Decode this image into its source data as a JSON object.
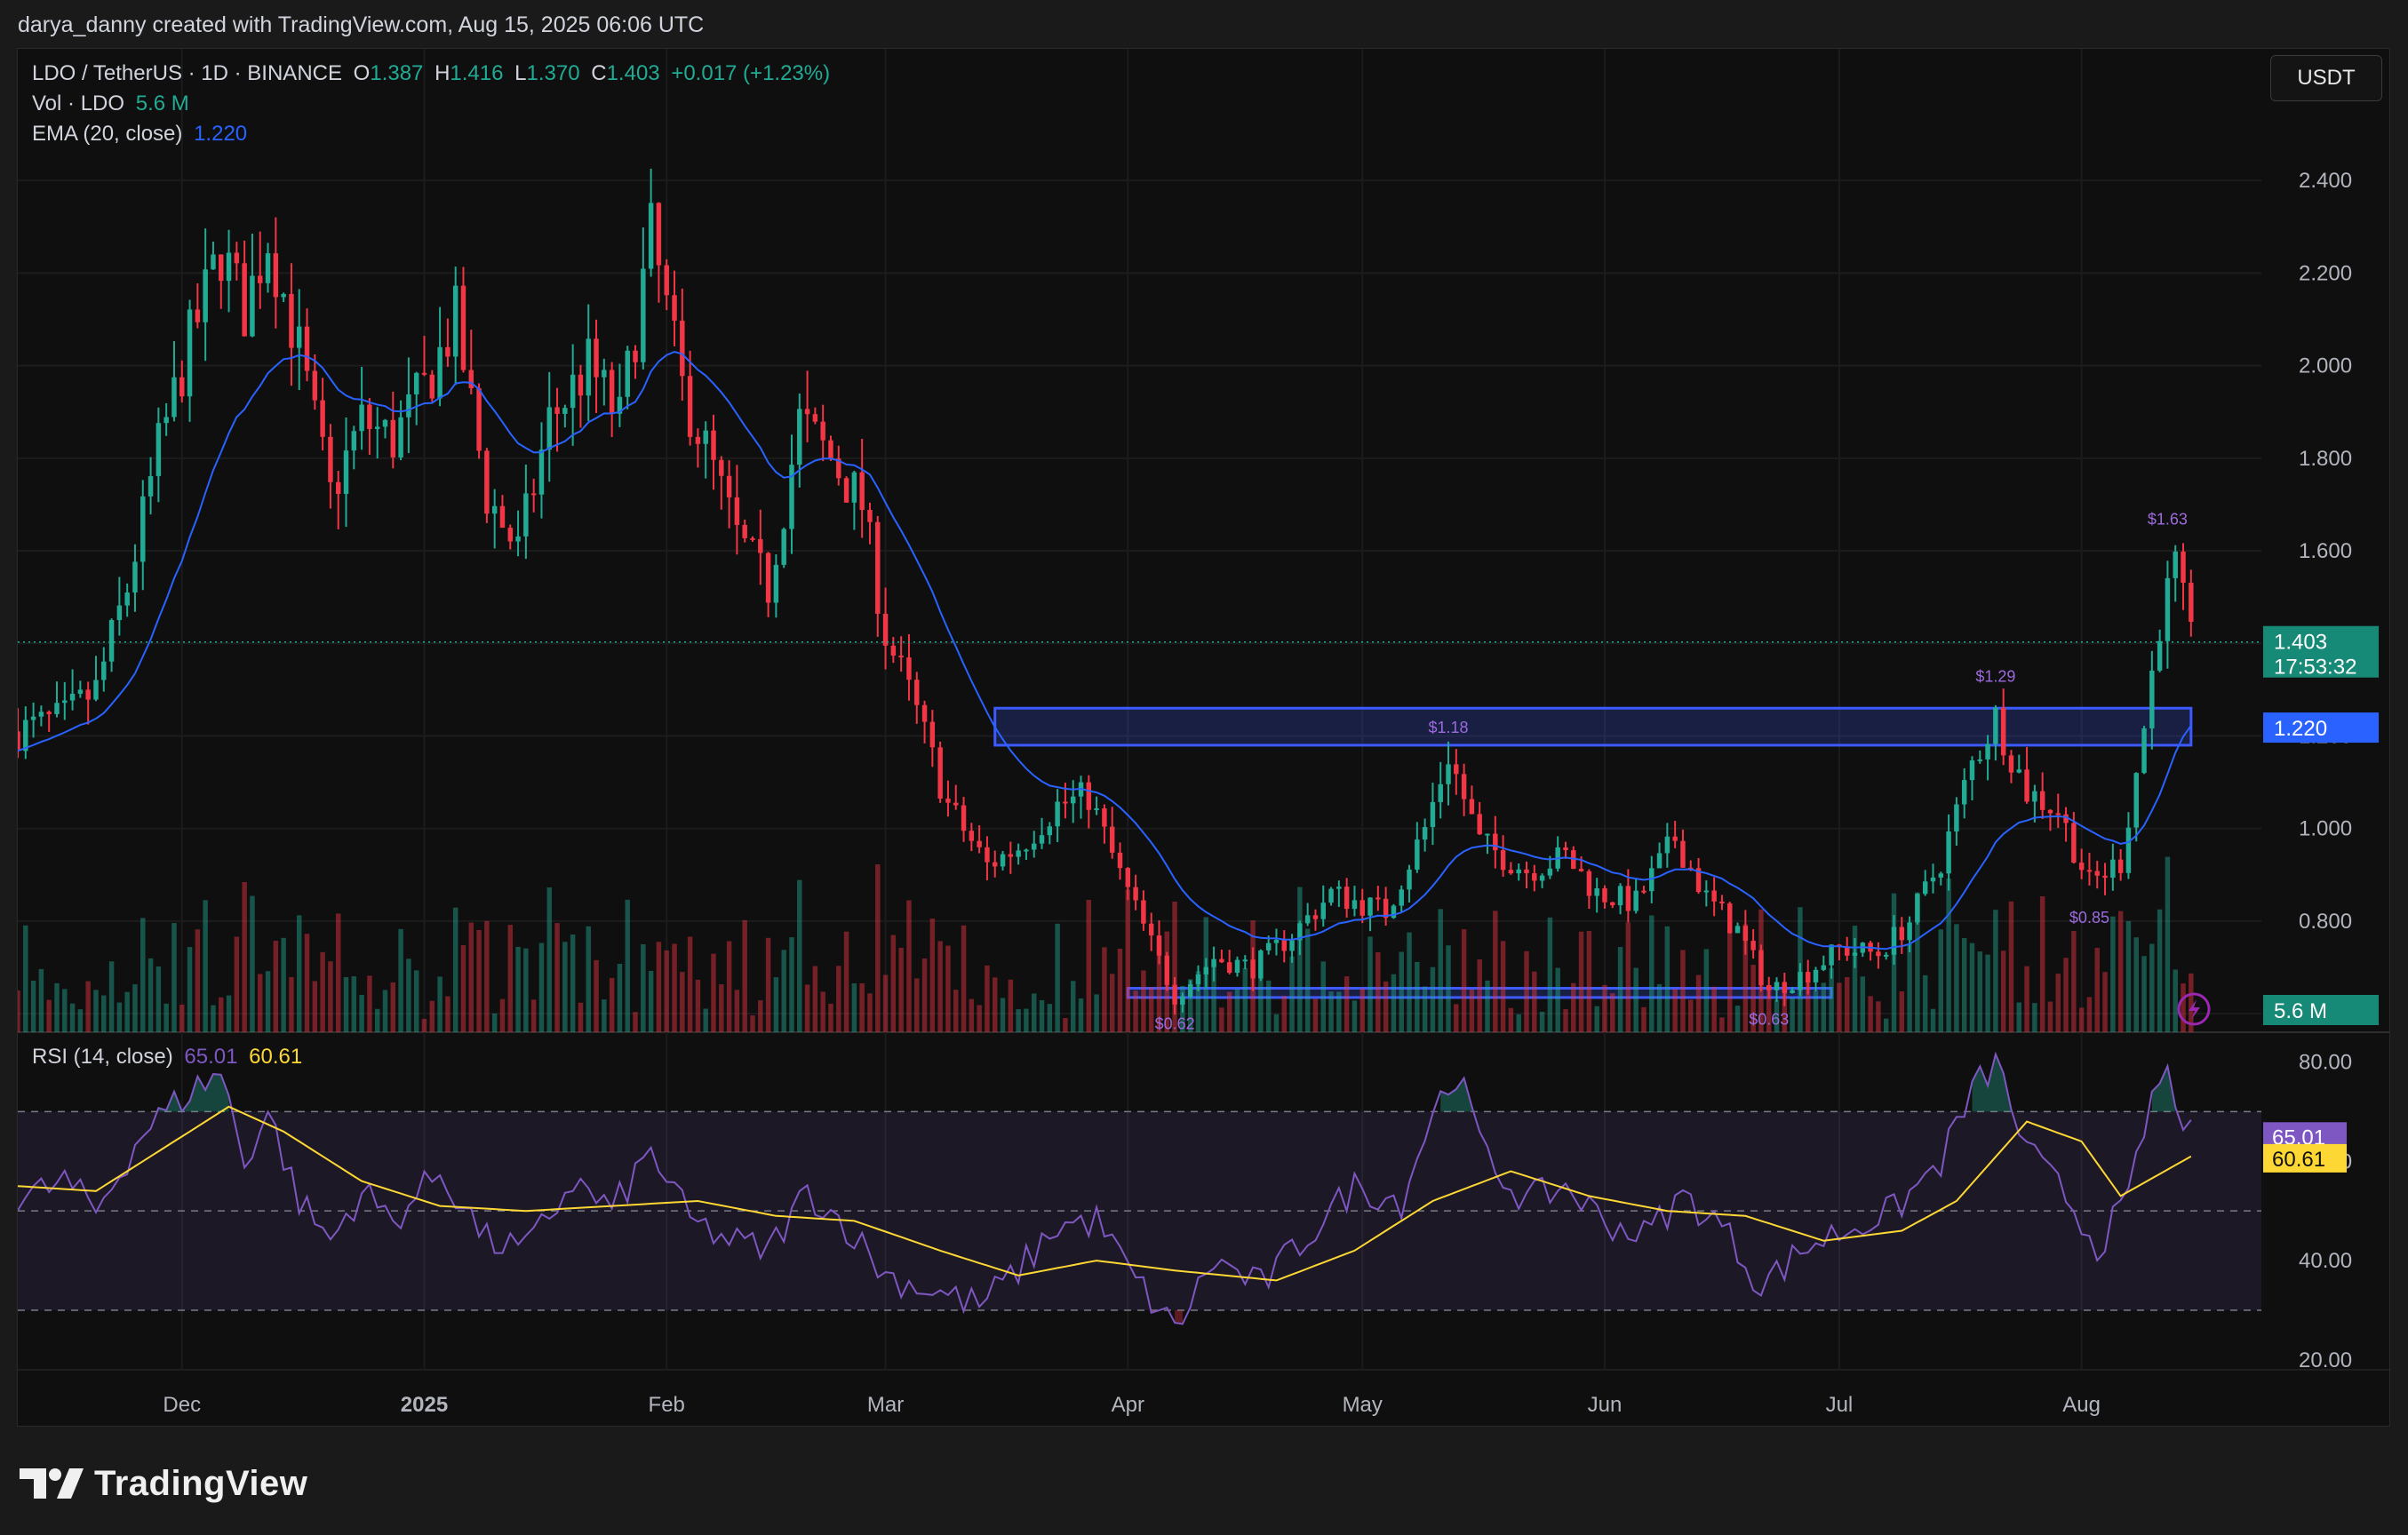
{
  "header": {
    "credit": "darya_danny created with TradingView.com, Aug 15, 2025 06:06 UTC"
  },
  "legend": {
    "symbol": "LDO / TetherUS · 1D · BINANCE",
    "o_label": "O",
    "o_value": "1.387",
    "h_label": "H",
    "h_value": "1.416",
    "l_label": "L",
    "l_value": "1.370",
    "c_label": "C",
    "c_value": "1.403",
    "change": "+0.017 (+1.23%)",
    "vol_label": "Vol · LDO",
    "vol_value": "5.6 M",
    "ema_label": "EMA (20, close)",
    "ema_value": "1.220",
    "rsi_label": "RSI (14, close)",
    "rsi_value": "65.01",
    "rsi_ma_value": "60.61"
  },
  "toolbar": {
    "currency": "USDT"
  },
  "branding": {
    "logo_text": "TradingView"
  },
  "colors": {
    "up": "#22ab94",
    "down": "#f23645",
    "ema": "#2962ff",
    "rsi": "#7e57c2",
    "rsi_ma": "#fdd835",
    "zone": "#3d5afe"
  },
  "chart_data": {
    "type": "candlestick",
    "symbol": "LDO/USDT",
    "interval": "1D",
    "x_ticks": [
      "Dec",
      "2025",
      "Feb",
      "Mar",
      "Apr",
      "May",
      "Jun",
      "Jul",
      "Aug"
    ],
    "price_axis": {
      "ticks": [
        "2.400",
        "2.200",
        "2.000",
        "1.800",
        "1.600",
        "1.400",
        "1.200",
        "1.000",
        "0.800",
        "0.600"
      ],
      "ylim": [
        0.56,
        2.55
      ]
    },
    "price_path": [
      [
        "2024-11-10",
        1.21
      ],
      [
        "2024-11-16",
        1.24
      ],
      [
        "2024-11-20",
        1.3
      ],
      [
        "2024-11-24",
        1.52
      ],
      [
        "2024-11-28",
        1.82
      ],
      [
        "2024-12-02",
        2.05
      ],
      [
        "2024-12-06",
        2.25
      ],
      [
        "2024-12-09",
        2.12
      ],
      [
        "2024-12-12",
        2.28
      ],
      [
        "2024-12-16",
        2.03
      ],
      [
        "2024-12-20",
        1.72
      ],
      [
        "2024-12-24",
        1.88
      ],
      [
        "2024-12-28",
        1.84
      ],
      [
        "2025-01-01",
        1.95
      ],
      [
        "2025-01-05",
        2.1
      ],
      [
        "2025-01-09",
        1.72
      ],
      [
        "2025-01-13",
        1.6
      ],
      [
        "2025-01-17",
        1.88
      ],
      [
        "2025-01-22",
        2.0
      ],
      [
        "2025-01-26",
        1.88
      ],
      [
        "2025-01-30",
        2.28
      ],
      [
        "2025-02-03",
        1.95
      ],
      [
        "2025-02-06",
        1.82
      ],
      [
        "2025-02-10",
        1.63
      ],
      [
        "2025-02-14",
        1.52
      ],
      [
        "2025-02-18",
        1.88
      ],
      [
        "2025-02-22",
        1.8
      ],
      [
        "2025-02-26",
        1.7
      ],
      [
        "2025-03-01",
        1.42
      ],
      [
        "2025-03-05",
        1.25
      ],
      [
        "2025-03-09",
        1.05
      ],
      [
        "2025-03-14",
        0.92
      ],
      [
        "2025-03-18",
        0.96
      ],
      [
        "2025-03-23",
        1.05
      ],
      [
        "2025-03-27",
        1.07
      ],
      [
        "2025-03-31",
        0.9
      ],
      [
        "2025-04-04",
        0.75
      ],
      [
        "2025-04-07",
        0.64
      ],
      [
        "2025-04-12",
        0.72
      ],
      [
        "2025-04-17",
        0.7
      ],
      [
        "2025-04-22",
        0.77
      ],
      [
        "2025-04-27",
        0.86
      ],
      [
        "2025-05-04",
        0.82
      ],
      [
        "2025-05-09",
        1.0
      ],
      [
        "2025-05-12",
        1.16
      ],
      [
        "2025-05-16",
        0.97
      ],
      [
        "2025-05-22",
        0.91
      ],
      [
        "2025-05-27",
        0.94
      ],
      [
        "2025-05-31",
        0.86
      ],
      [
        "2025-06-05",
        0.84
      ],
      [
        "2025-06-10",
        0.98
      ],
      [
        "2025-06-14",
        0.85
      ],
      [
        "2025-06-18",
        0.78
      ],
      [
        "2025-06-22",
        0.65
      ],
      [
        "2025-06-27",
        0.69
      ],
      [
        "2025-07-01",
        0.74
      ],
      [
        "2025-07-06",
        0.73
      ],
      [
        "2025-07-10",
        0.8
      ],
      [
        "2025-07-14",
        0.93
      ],
      [
        "2025-07-18",
        1.14
      ],
      [
        "2025-07-21",
        1.24
      ],
      [
        "2025-07-25",
        1.08
      ],
      [
        "2025-07-29",
        1.04
      ],
      [
        "2025-08-02",
        0.88
      ],
      [
        "2025-08-06",
        0.93
      ],
      [
        "2025-08-09",
        1.22
      ],
      [
        "2025-08-11",
        1.45
      ],
      [
        "2025-08-13",
        1.56
      ],
      [
        "2025-08-15",
        1.4
      ]
    ],
    "ema20": {
      "label": "EMA (20, close)",
      "last": 1.22
    },
    "current_price": {
      "value": "1.403",
      "countdown": "17:53:32"
    },
    "zones": [
      {
        "label": "",
        "from": "2025-03-15",
        "to": "2025-08-15",
        "low": 1.18,
        "high": 1.26
      },
      {
        "label": "",
        "from": "2025-04-01",
        "to": "2025-06-30",
        "low": 0.635,
        "high": 0.655
      }
    ],
    "annotations": [
      {
        "text": "$1.63",
        "date": "2025-08-12",
        "price": 1.63,
        "pos": "above"
      },
      {
        "text": "$1.29",
        "date": "2025-07-21",
        "price": 1.29,
        "pos": "above"
      },
      {
        "text": "$1.18",
        "date": "2025-05-12",
        "price": 1.18,
        "pos": "above"
      },
      {
        "text": "$0.85",
        "date": "2025-08-02",
        "price": 0.85,
        "pos": "below"
      },
      {
        "text": "$0.62",
        "date": "2025-04-07",
        "price": 0.62,
        "pos": "below"
      },
      {
        "text": "$0.63",
        "date": "2025-06-22",
        "price": 0.63,
        "pos": "below"
      }
    ],
    "volume": {
      "last": "5.6 M"
    },
    "rsi_axis": {
      "ticks": [
        "80.00",
        "60.00",
        "40.00",
        "20.00"
      ],
      "ylim": [
        18,
        86
      ],
      "bands": [
        70,
        50,
        30
      ]
    },
    "rsi_path": [
      [
        "2024-11-10",
        52
      ],
      [
        "2024-11-16",
        56
      ],
      [
        "2024-11-20",
        50
      ],
      [
        "2024-11-26",
        66
      ],
      [
        "2024-12-02",
        74
      ],
      [
        "2024-12-06",
        78
      ],
      [
        "2024-12-09",
        60
      ],
      [
        "2024-12-12",
        70
      ],
      [
        "2024-12-16",
        52
      ],
      [
        "2024-12-20",
        44
      ],
      [
        "2024-12-24",
        54
      ],
      [
        "2024-12-28",
        48
      ],
      [
        "2025-01-03",
        58
      ],
      [
        "2025-01-09",
        44
      ],
      [
        "2025-01-14",
        42
      ],
      [
        "2025-01-20",
        56
      ],
      [
        "2025-01-25",
        50
      ],
      [
        "2025-01-30",
        62
      ],
      [
        "2025-02-04",
        48
      ],
      [
        "2025-02-09",
        44
      ],
      [
        "2025-02-14",
        42
      ],
      [
        "2025-02-19",
        54
      ],
      [
        "2025-02-24",
        47
      ],
      [
        "2025-03-01",
        37
      ],
      [
        "2025-03-07",
        34
      ],
      [
        "2025-03-13",
        31
      ],
      [
        "2025-03-18",
        38
      ],
      [
        "2025-03-23",
        47
      ],
      [
        "2025-03-28",
        48
      ],
      [
        "2025-04-02",
        36
      ],
      [
        "2025-04-07",
        26
      ],
      [
        "2025-04-12",
        40
      ],
      [
        "2025-04-18",
        35
      ],
      [
        "2025-04-24",
        45
      ],
      [
        "2025-04-30",
        55
      ],
      [
        "2025-05-06",
        52
      ],
      [
        "2025-05-10",
        70
      ],
      [
        "2025-05-13",
        78
      ],
      [
        "2025-05-17",
        60
      ],
      [
        "2025-05-22",
        52
      ],
      [
        "2025-05-27",
        55
      ],
      [
        "2025-06-01",
        48
      ],
      [
        "2025-06-06",
        45
      ],
      [
        "2025-06-11",
        53
      ],
      [
        "2025-06-16",
        47
      ],
      [
        "2025-06-21",
        35
      ],
      [
        "2025-06-27",
        43
      ],
      [
        "2025-07-03",
        47
      ],
      [
        "2025-07-08",
        50
      ],
      [
        "2025-07-14",
        60
      ],
      [
        "2025-07-18",
        74
      ],
      [
        "2025-07-21",
        80
      ],
      [
        "2025-07-25",
        62
      ],
      [
        "2025-07-30",
        53
      ],
      [
        "2025-08-03",
        43
      ],
      [
        "2025-08-07",
        52
      ],
      [
        "2025-08-10",
        73
      ],
      [
        "2025-08-12",
        77
      ],
      [
        "2025-08-15",
        65
      ]
    ],
    "rsi_ma_path": [
      [
        "2024-11-10",
        55
      ],
      [
        "2024-11-20",
        54
      ],
      [
        "2024-11-30",
        64
      ],
      [
        "2024-12-07",
        71
      ],
      [
        "2024-12-14",
        66
      ],
      [
        "2024-12-24",
        56
      ],
      [
        "2025-01-03",
        51
      ],
      [
        "2025-01-14",
        50
      ],
      [
        "2025-01-25",
        51
      ],
      [
        "2025-02-05",
        52
      ],
      [
        "2025-02-15",
        49
      ],
      [
        "2025-02-25",
        48
      ],
      [
        "2025-03-08",
        42
      ],
      [
        "2025-03-18",
        37
      ],
      [
        "2025-03-28",
        40
      ],
      [
        "2025-04-07",
        38
      ],
      [
        "2025-04-20",
        36
      ],
      [
        "2025-04-30",
        42
      ],
      [
        "2025-05-10",
        52
      ],
      [
        "2025-05-20",
        58
      ],
      [
        "2025-05-30",
        53
      ],
      [
        "2025-06-09",
        50
      ],
      [
        "2025-06-19",
        49
      ],
      [
        "2025-06-29",
        44
      ],
      [
        "2025-07-09",
        46
      ],
      [
        "2025-07-16",
        52
      ],
      [
        "2025-07-25",
        68
      ],
      [
        "2025-08-01",
        64
      ],
      [
        "2025-08-06",
        53
      ],
      [
        "2025-08-15",
        61
      ]
    ],
    "rsi_last": "65.01",
    "rsi_ma_last": "60.61"
  }
}
